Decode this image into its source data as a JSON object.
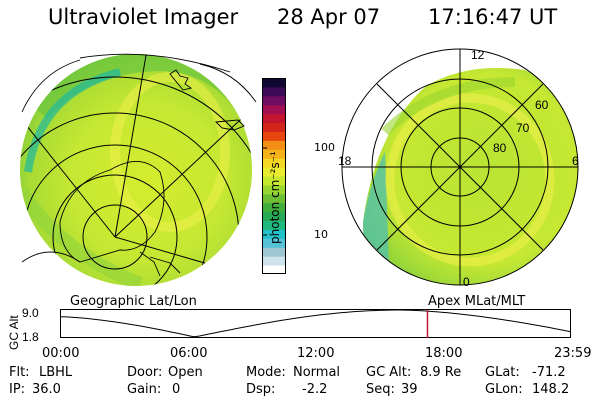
{
  "header": {
    "instrument": "Ultraviolet Imager",
    "date": "28 Apr 07",
    "time": "17:16:47 UT"
  },
  "colorbar": {
    "tick_labels": [
      "100",
      "10"
    ],
    "unit_label": "photon cm⁻²s⁻¹",
    "colors": [
      "#ffffff",
      "#cfe3ea",
      "#9ec7d3",
      "#55c2d7",
      "#22c1c9",
      "#1fb880",
      "#27a854",
      "#3fae3c",
      "#6cbe33",
      "#9ad631",
      "#c6e82f",
      "#e9ec2f",
      "#f5d725",
      "#f6b21a",
      "#f38e16",
      "#e8460f",
      "#d3261a",
      "#c2152f",
      "#a10e52",
      "#6e0c63",
      "#3c0a56",
      "#0f0730"
    ]
  },
  "geographic_panel": {
    "label": "Geographic Lat/Lon"
  },
  "apex_panel": {
    "label": "Apex MLat/MLT",
    "mlt_labels": {
      "top": "12",
      "left": "18",
      "right": "6",
      "bottom": "0"
    },
    "mlat_labels": [
      "60",
      "70",
      "80"
    ]
  },
  "altitude_plot": {
    "axis_label": "GC Alt",
    "y_ticks": [
      "9.0",
      "1.8"
    ],
    "x_ticks": [
      "00:00",
      "06:00",
      "12:00",
      "18:00",
      "23:59"
    ],
    "current_time_hours": 17.28
  },
  "info": {
    "filter_label": "Flt:",
    "filter_value": "LBHL",
    "ip_label": "IP:",
    "ip_value": "36.0",
    "door_label": "Door:",
    "door_value": "Open",
    "gain_label": "Gain:",
    "gain_value": "0",
    "mode_label": "Mode:",
    "mode_value": "Normal",
    "dsp_label": "Dsp:",
    "dsp_value": "-2.2",
    "gcalt_label": "GC Alt:",
    "gcalt_value": "8.9 Re",
    "seq_label": "Seq:",
    "seq_value": "39",
    "glat_label": "GLat:",
    "glat_value": "-71.2",
    "glon_label": "GLon:",
    "glon_value": "148.2"
  }
}
